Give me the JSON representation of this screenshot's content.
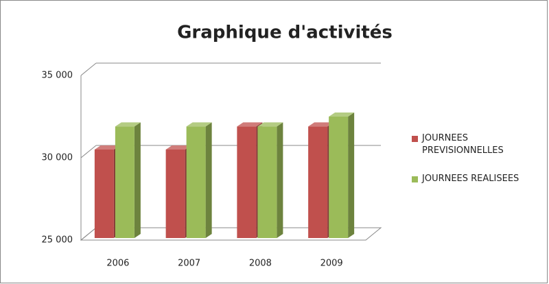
{
  "chart_data": {
    "type": "bar3d",
    "title": "Graphique d'activités",
    "categories": [
      "2006",
      "2007",
      "2008",
      "2009"
    ],
    "series": [
      {
        "name": "JOURNEES PREVISIONNELLES",
        "color": "#c0504d",
        "values": [
          30500,
          30500,
          31900,
          31900
        ]
      },
      {
        "name": "JOURNEES REALISEES",
        "color": "#9bbb59",
        "values": [
          31900,
          31900,
          31900,
          32500
        ]
      }
    ],
    "ylim": [
      25000,
      35000
    ],
    "yticks": [
      {
        "value": 25000,
        "label": "25 000"
      },
      {
        "value": 30000,
        "label": "30 000"
      },
      {
        "value": 35000,
        "label": "35 000"
      }
    ],
    "grid": true,
    "legend": "right"
  }
}
